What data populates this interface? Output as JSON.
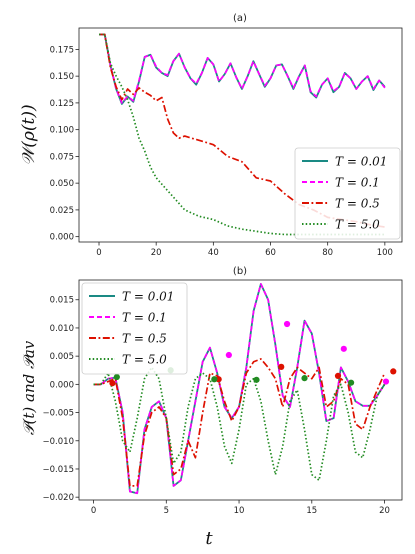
{
  "chart_data": [
    {
      "type": "line",
      "title": "(a)",
      "xlabel": "",
      "ylabel": "𝒲(ρ(t))",
      "xlim": [
        -7,
        106
      ],
      "ylim": [
        -0.005,
        0.195
      ],
      "xticks": [
        0,
        20,
        40,
        60,
        80,
        100
      ],
      "yticks": [
        0.0,
        0.025,
        0.05,
        0.075,
        0.1,
        0.125,
        0.15,
        0.175
      ],
      "xtick_labels": [
        "0",
        "20",
        "40",
        "60",
        "80",
        "100"
      ],
      "ytick_labels": [
        "0.000",
        "0.025",
        "0.050",
        "0.075",
        "0.100",
        "0.125",
        "0.150",
        "0.175"
      ],
      "legend": "lower-right",
      "grid": false,
      "series": [
        {
          "name": "T = 0.01",
          "color": "#1a8a84",
          "style": "solid",
          "x": [
            0,
            2,
            4,
            6,
            8,
            10,
            12,
            14,
            16,
            18,
            20,
            22,
            24,
            26,
            28,
            30,
            32,
            34,
            36,
            38,
            40,
            42,
            44,
            46,
            48,
            50,
            52,
            54,
            56,
            58,
            60,
            62,
            64,
            66,
            68,
            70,
            72,
            74,
            76,
            78,
            80,
            82,
            84,
            86,
            88,
            90,
            92,
            94,
            96,
            98,
            100
          ],
          "y": [
            0.189,
            0.189,
            0.16,
            0.138,
            0.124,
            0.131,
            0.126,
            0.145,
            0.168,
            0.17,
            0.158,
            0.153,
            0.15,
            0.164,
            0.171,
            0.158,
            0.148,
            0.142,
            0.153,
            0.167,
            0.161,
            0.145,
            0.152,
            0.162,
            0.149,
            0.138,
            0.15,
            0.164,
            0.152,
            0.14,
            0.148,
            0.16,
            0.161,
            0.15,
            0.138,
            0.15,
            0.16,
            0.135,
            0.13,
            0.142,
            0.148,
            0.135,
            0.14,
            0.153,
            0.148,
            0.138,
            0.145,
            0.15,
            0.137,
            0.146,
            0.14
          ]
        },
        {
          "name": "T = 0.1",
          "color": "#ff00ff",
          "style": "dashed",
          "x": [
            0,
            2,
            4,
            6,
            8,
            10,
            12,
            14,
            16,
            18,
            20,
            22,
            24,
            26,
            28,
            30,
            32,
            34,
            36,
            38,
            40,
            42,
            44,
            46,
            48,
            50,
            52,
            54,
            56,
            58,
            60,
            62,
            64,
            66,
            68,
            70,
            72,
            74,
            76,
            78,
            80,
            82,
            84,
            86,
            88,
            90,
            92,
            94,
            96,
            98,
            100
          ],
          "y": [
            0.189,
            0.189,
            0.16,
            0.138,
            0.125,
            0.131,
            0.127,
            0.146,
            0.168,
            0.17,
            0.159,
            0.153,
            0.151,
            0.164,
            0.171,
            0.158,
            0.148,
            0.143,
            0.153,
            0.167,
            0.161,
            0.145,
            0.152,
            0.162,
            0.149,
            0.138,
            0.15,
            0.164,
            0.152,
            0.141,
            0.148,
            0.16,
            0.161,
            0.15,
            0.139,
            0.15,
            0.16,
            0.136,
            0.131,
            0.142,
            0.148,
            0.136,
            0.14,
            0.153,
            0.148,
            0.138,
            0.145,
            0.15,
            0.138,
            0.146,
            0.139
          ]
        },
        {
          "name": "T = 0.5",
          "color": "#dd1100",
          "style": "dashdot",
          "x": [
            0,
            2,
            4,
            6,
            8,
            10,
            12,
            14,
            16,
            18,
            20,
            22,
            24,
            26,
            28,
            30,
            35,
            40,
            45,
            50,
            55,
            60,
            65,
            70,
            75,
            80,
            85,
            90,
            95,
            100
          ],
          "y": [
            0.189,
            0.189,
            0.158,
            0.14,
            0.128,
            0.138,
            0.133,
            0.139,
            0.135,
            0.132,
            0.127,
            0.13,
            0.11,
            0.097,
            0.092,
            0.094,
            0.09,
            0.086,
            0.075,
            0.07,
            0.055,
            0.052,
            0.04,
            0.03,
            0.025,
            0.018,
            0.016,
            0.014,
            0.011,
            0.009
          ]
        },
        {
          "name": "T = 5.0",
          "color": "#228b22",
          "style": "dotted",
          "x": [
            0,
            2,
            4,
            6,
            8,
            10,
            12,
            14,
            16,
            18,
            20,
            25,
            30,
            35,
            40,
            45,
            50,
            55,
            60,
            65,
            70,
            75,
            80,
            85,
            90,
            95,
            100
          ],
          "y": [
            0.189,
            0.189,
            0.162,
            0.15,
            0.14,
            0.128,
            0.112,
            0.092,
            0.08,
            0.065,
            0.055,
            0.04,
            0.025,
            0.019,
            0.016,
            0.01,
            0.007,
            0.005,
            0.003,
            0.002,
            0.002,
            0.002,
            0.002,
            0.002,
            0.002,
            0.002,
            0.002
          ]
        }
      ]
    },
    {
      "type": "line",
      "title": "(b)",
      "xlabel": "t",
      "ylabel": "𝒫(t) and 𝒫av",
      "xlim": [
        -1.0,
        21.2
      ],
      "ylim": [
        -0.0205,
        0.0185
      ],
      "xticks": [
        0,
        5,
        10,
        15,
        20
      ],
      "yticks": [
        -0.02,
        -0.015,
        -0.01,
        -0.005,
        0.0,
        0.005,
        0.01,
        0.015
      ],
      "xtick_labels": [
        "0",
        "5",
        "10",
        "15",
        "20"
      ],
      "ytick_labels": [
        "−0.020",
        "−0.015",
        "−0.010",
        "−0.005",
        "0.000",
        "0.005",
        "0.010",
        "0.015"
      ],
      "legend": "top-left",
      "grid": false,
      "series": [
        {
          "name": "T = 0.01",
          "color": "#1a8a84",
          "style": "solid",
          "x": [
            0,
            0.5,
            1.0,
            1.5,
            2.0,
            2.5,
            3.0,
            3.5,
            4.0,
            4.5,
            5.0,
            5.5,
            6.0,
            6.5,
            7.0,
            7.5,
            8.0,
            8.5,
            9.0,
            9.5,
            10.0,
            10.5,
            11.0,
            11.5,
            12.0,
            12.5,
            13.0,
            13.5,
            14.0,
            14.5,
            15.0,
            15.5,
            16.0,
            16.5,
            17.0,
            17.5,
            18.0,
            18.5,
            19.0,
            19.5,
            20.0
          ],
          "y": [
            0.0,
            0.0,
            0.001,
            0.0012,
            -0.005,
            -0.019,
            -0.0193,
            -0.008,
            -0.004,
            -0.003,
            -0.006,
            -0.018,
            -0.017,
            -0.01,
            -0.003,
            0.004,
            0.0065,
            0.002,
            -0.004,
            -0.006,
            -0.004,
            0.003,
            0.013,
            0.0178,
            0.015,
            0.007,
            -0.002,
            -0.004,
            0.003,
            0.0113,
            0.009,
            0.002,
            -0.0065,
            -0.006,
            0.003,
            0.0005,
            -0.003,
            -0.0038,
            -0.0038,
            -0.002,
            0.0
          ]
        },
        {
          "name": "T = 0.1",
          "color": "#ff00ff",
          "style": "dashed",
          "x": [
            0,
            0.5,
            1.0,
            1.5,
            2.0,
            2.5,
            3.0,
            3.5,
            4.0,
            4.5,
            5.0,
            5.5,
            6.0,
            6.5,
            7.0,
            7.5,
            8.0,
            8.5,
            9.0,
            9.5,
            10.0,
            10.5,
            11.0,
            11.5,
            12.0,
            12.5,
            13.0,
            13.5,
            14.0,
            14.5,
            15.0,
            15.5,
            16.0,
            16.5,
            17.0,
            17.5,
            18.0,
            18.5,
            19.0,
            19.5,
            20.0
          ],
          "y": [
            0.0,
            0.0,
            0.001,
            0.0012,
            -0.005,
            -0.019,
            -0.0193,
            -0.008,
            -0.004,
            -0.003,
            -0.006,
            -0.018,
            -0.017,
            -0.01,
            -0.003,
            0.004,
            0.0065,
            0.002,
            -0.004,
            -0.006,
            -0.004,
            0.003,
            0.013,
            0.0178,
            0.015,
            0.007,
            -0.002,
            -0.004,
            0.003,
            0.0113,
            0.009,
            0.002,
            -0.0065,
            -0.006,
            0.003,
            0.0005,
            -0.003,
            -0.0038,
            -0.0038,
            -0.002,
            0.0
          ]
        },
        {
          "name": "T = 0.5",
          "color": "#dd1100",
          "style": "dashdot",
          "x": [
            0,
            0.5,
            1.0,
            1.5,
            2.0,
            2.5,
            3.0,
            3.5,
            4.0,
            4.5,
            5.0,
            5.5,
            6.0,
            6.5,
            7.0,
            7.5,
            8.0,
            8.5,
            9.0,
            9.5,
            10.0,
            10.5,
            11.0,
            11.5,
            12.0,
            12.5,
            13.0,
            13.5,
            14.0,
            14.5,
            15.0,
            15.5,
            16.0,
            16.5,
            17.0,
            17.5,
            18.0,
            18.5,
            19.0,
            19.5,
            20.0
          ],
          "y": [
            0.0,
            0.0,
            0.0005,
            0.001,
            -0.006,
            -0.018,
            -0.018,
            -0.009,
            -0.005,
            -0.004,
            -0.006,
            -0.016,
            -0.015,
            -0.01,
            -0.013,
            -0.005,
            0.002,
            0.0015,
            -0.003,
            -0.0065,
            -0.004,
            0.002,
            0.004,
            0.0045,
            0.003,
            0.001,
            -0.004,
            0.001,
            0.003,
            0.002,
            0.001,
            0.003,
            -0.004,
            -0.003,
            0.001,
            0.0,
            -0.007,
            -0.008,
            -0.004,
            -0.001,
            0.002
          ]
        },
        {
          "name": "T = 5.0",
          "color": "#228b22",
          "style": "dotted",
          "x": [
            0,
            0.5,
            1.0,
            1.5,
            2.0,
            2.5,
            3.0,
            3.5,
            4.0,
            4.5,
            5.0,
            5.5,
            6.0,
            6.5,
            7.0,
            7.5,
            8.0,
            8.5,
            9.0,
            9.5,
            10.0,
            10.5,
            11.0,
            11.5,
            12.0,
            12.5,
            13.0,
            13.5,
            14.0,
            14.5,
            15.0,
            15.5,
            16.0,
            16.5,
            17.0,
            17.5,
            18.0,
            18.5,
            19.0,
            19.5,
            20.0
          ],
          "y": [
            0.0,
            0.0,
            0.002,
            -0.003,
            -0.01,
            -0.012,
            -0.006,
            0.001,
            0.003,
            0.001,
            -0.006,
            -0.014,
            -0.012,
            -0.004,
            0.001,
            0.002,
            0.001,
            -0.004,
            -0.011,
            -0.014,
            -0.008,
            0.0,
            0.001,
            -0.003,
            -0.01,
            -0.016,
            -0.011,
            -0.003,
            -0.001,
            -0.008,
            -0.016,
            -0.017,
            -0.01,
            -0.002,
            0.0,
            -0.005,
            -0.012,
            -0.013,
            -0.008,
            -0.002,
            0.0
          ]
        }
      ],
      "averages": [
        {
          "name": "T = 0.5",
          "color": "#dd1100",
          "x": [
            1.3,
            8.6,
            12.9,
            16.8,
            20.6
          ],
          "y": [
            0.0002,
            0.0009,
            0.0031,
            0.0015,
            0.0023
          ]
        },
        {
          "name": "T = 0.1",
          "color": "#ff00ff",
          "x": [
            9.3,
            13.3,
            17.2,
            20.1
          ],
          "y": [
            0.0052,
            0.0107,
            0.0063,
            0.0005
          ]
        },
        {
          "name": "T = 5.0",
          "color": "#228b22",
          "x": [
            1.6,
            5.3,
            8.3,
            11.2,
            14.5,
            17.7
          ],
          "y": [
            0.0013,
            0.0025,
            0.0009,
            0.0008,
            0.0011,
            0.0003
          ]
        }
      ]
    }
  ]
}
